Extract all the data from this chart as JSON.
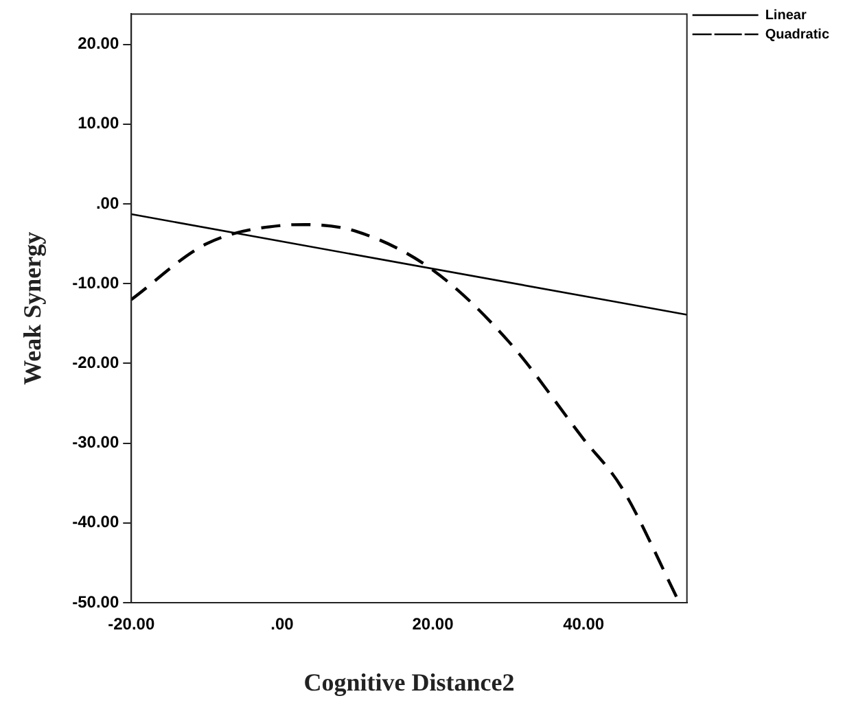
{
  "chart_data": {
    "type": "line",
    "xlabel": "Cognitive Distance2",
    "ylabel": "Weak Synergy",
    "xlim": [
      -20,
      53.7
    ],
    "ylim": [
      -50,
      23.8
    ],
    "xticks": [
      {
        "value": -20,
        "label": "-20.00"
      },
      {
        "value": 0,
        "label": ".00"
      },
      {
        "value": 20,
        "label": "20.00"
      },
      {
        "value": 40,
        "label": "40.00"
      }
    ],
    "yticks": [
      {
        "value": -50,
        "label": "-50.00"
      },
      {
        "value": -40,
        "label": "-40.00"
      },
      {
        "value": -30,
        "label": "-30.00"
      },
      {
        "value": -20,
        "label": "-20.00"
      },
      {
        "value": -10,
        "label": "-10.00"
      },
      {
        "value": 0,
        "label": ".00"
      },
      {
        "value": 10,
        "label": "10.00"
      },
      {
        "value": 20,
        "label": "20.00"
      }
    ],
    "grid": false,
    "legend": "top right",
    "marker": "none",
    "series": [
      {
        "name": "Linear",
        "color": "#000000",
        "line_style": "solid",
        "x": [
          -20,
          53.7
        ],
        "values": [
          -1.3,
          -13.9
        ]
      },
      {
        "name": "Quadratic",
        "color": "#000000",
        "line_style": "dashed",
        "x": [
          -20,
          -10,
          0,
          3,
          10,
          20,
          30,
          40,
          45,
          52.7
        ],
        "values": [
          -12,
          -5,
          -2.7,
          -2.6,
          -3.5,
          -8.3,
          -17.2,
          -29.5,
          -35.5,
          -50
        ]
      }
    ]
  }
}
